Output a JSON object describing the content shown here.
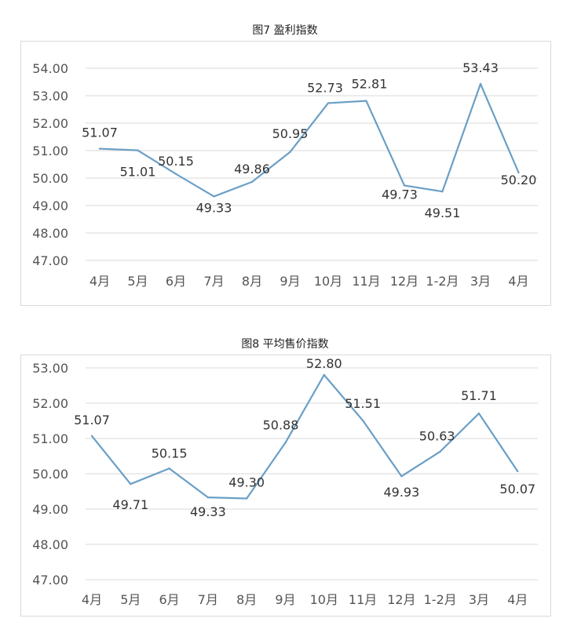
{
  "chart_data": [
    {
      "type": "line",
      "title": "图7 盈利指数",
      "categories": [
        "4月",
        "5月",
        "6月",
        "7月",
        "8月",
        "9月",
        "10月",
        "11月",
        "12月",
        "1-2月",
        "3月",
        "4月"
      ],
      "values": [
        51.07,
        51.01,
        50.15,
        49.33,
        49.86,
        50.95,
        52.73,
        52.81,
        49.73,
        49.51,
        53.43,
        50.2
      ],
      "data_labels": [
        "51.07",
        "51.01",
        "50.15",
        "49.33",
        "49.86",
        "50.95",
        "52.73",
        "52.81",
        "49.73",
        "49.51",
        "53.43",
        "50.20"
      ],
      "yticks": [
        "47.00",
        "48.00",
        "49.00",
        "50.00",
        "51.00",
        "52.00",
        "53.00",
        "54.00"
      ],
      "ylim": [
        47,
        54
      ],
      "grid": true,
      "line_color": "#6a9fc6"
    },
    {
      "type": "line",
      "title": "图8 平均售价指数",
      "categories": [
        "4月",
        "5月",
        "6月",
        "7月",
        "8月",
        "9月",
        "10月",
        "11月",
        "12月",
        "1-2月",
        "3月",
        "4月"
      ],
      "values": [
        51.07,
        49.71,
        50.15,
        49.33,
        49.3,
        50.88,
        52.8,
        51.51,
        49.93,
        50.63,
        51.71,
        50.07
      ],
      "data_labels": [
        "51.07",
        "49.71",
        "50.15",
        "49.33",
        "49.30",
        "50.88",
        "52.80",
        "51.51",
        "49.93",
        "50.63",
        "51.71",
        "50.07"
      ],
      "yticks": [
        "47.00",
        "48.00",
        "49.00",
        "50.00",
        "51.00",
        "52.00",
        "53.00"
      ],
      "ylim": [
        47,
        53
      ],
      "grid": true,
      "line_color": "#6a9fc6"
    }
  ]
}
